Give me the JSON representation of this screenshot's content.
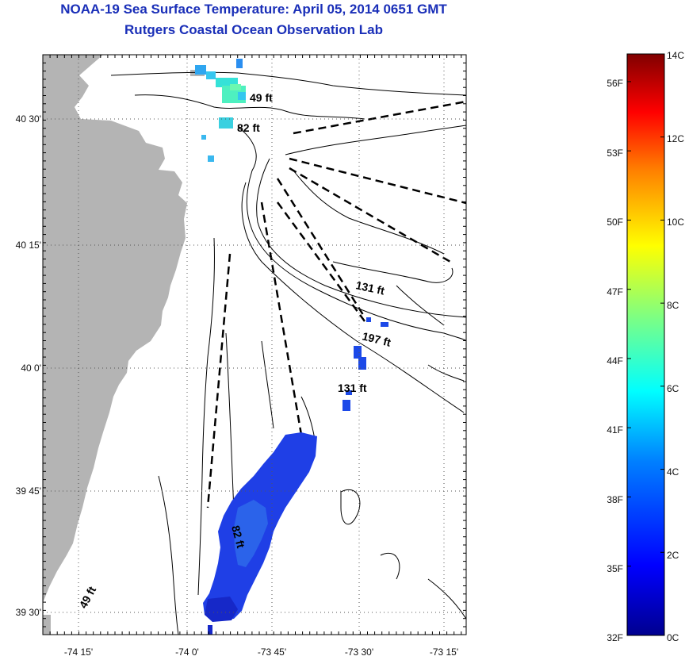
{
  "header": {
    "title": "NOAA-19 Sea Surface Temperature:  April 05, 2014 0651 GMT",
    "subtitle": "Rutgers Coastal Ocean Observation Lab"
  },
  "axes": {
    "x_ticks": [
      "-74 15'",
      "-74 0'",
      "-73 45'",
      "-73 30'",
      "-73 15'"
    ],
    "y_ticks": [
      "40 30'",
      "40 15'",
      "40 0'",
      "39 45'",
      "39 30'"
    ]
  },
  "depth_labels": [
    "49 ft",
    "82 ft",
    "131 ft",
    "197 ft",
    "131 ft",
    "82 ft",
    "49 ft"
  ],
  "colorbar": {
    "fahrenheit_labels": [
      "56F",
      "53F",
      "50F",
      "47F",
      "44F",
      "41F",
      "38F",
      "35F",
      "32F"
    ],
    "celsius_labels": [
      "14C",
      "12C",
      "10C",
      "8C",
      "6C",
      "4C",
      "2C",
      "0C"
    ],
    "colors": [
      "#00008f",
      "#0000ff",
      "#0080ff",
      "#00ffff",
      "#80ff80",
      "#ffff00",
      "#ff8000",
      "#ff0000",
      "#800000"
    ]
  },
  "colors": {
    "title": "#1a2fb8",
    "land": "#b4b4b4",
    "sst_cold": "#1a3be0",
    "sst_cyan": "#30d8e0"
  }
}
